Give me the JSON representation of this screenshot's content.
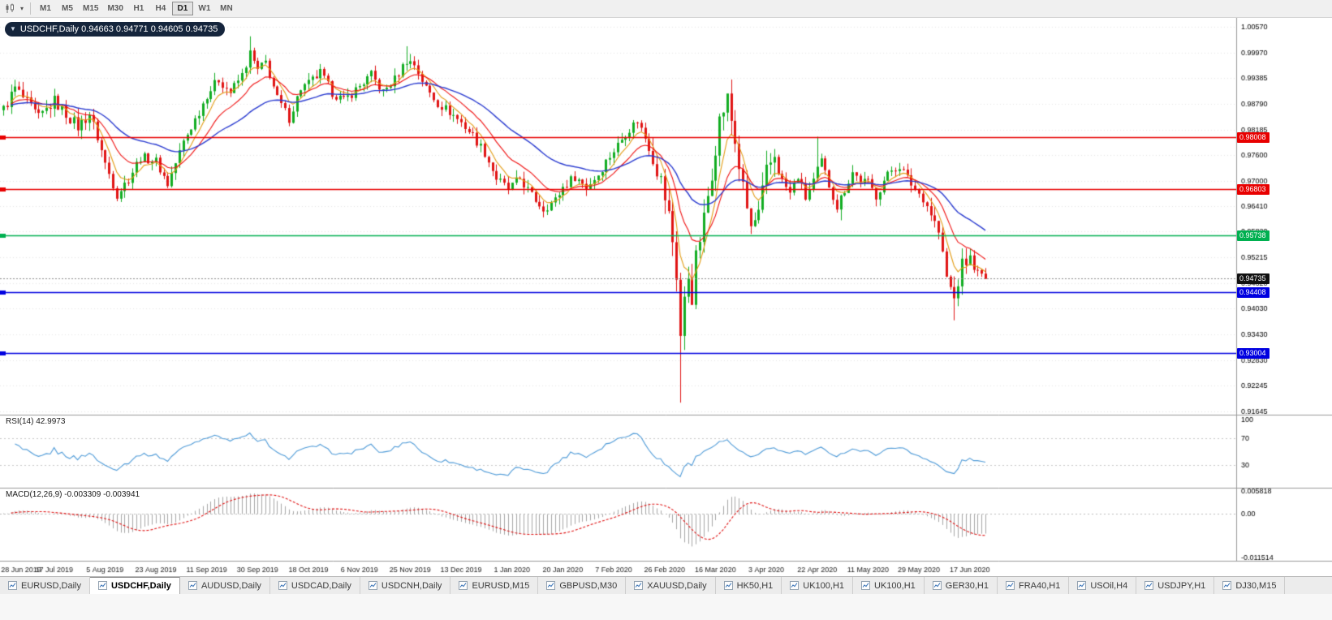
{
  "toolbar": {
    "timeframes": [
      "M1",
      "M5",
      "M15",
      "M30",
      "H1",
      "H4",
      "D1",
      "W1",
      "MN"
    ],
    "active_timeframe": "D1"
  },
  "chart": {
    "title": "USDCHF,Daily 0.94663 0.94771 0.94605 0.94735"
  },
  "tabs": [
    {
      "label": "EURUSD,Daily",
      "active": false
    },
    {
      "label": "USDCHF,Daily",
      "active": true
    },
    {
      "label": "AUDUSD,Daily",
      "active": false
    },
    {
      "label": "USDCAD,Daily",
      "active": false
    },
    {
      "label": "USDCNH,Daily",
      "active": false
    },
    {
      "label": "EURUSD,M15",
      "active": false
    },
    {
      "label": "GBPUSD,M30",
      "active": false
    },
    {
      "label": "XAUUSD,Daily",
      "active": false
    },
    {
      "label": "HK50,H1",
      "active": false
    },
    {
      "label": "UK100,H1",
      "active": false
    },
    {
      "label": "UK100,H1",
      "active": false
    },
    {
      "label": "GER30,H1",
      "active": false
    },
    {
      "label": "FRA40,H1",
      "active": false
    },
    {
      "label": "USOil,H4",
      "active": false
    },
    {
      "label": "USDJPY,H1",
      "active": false
    },
    {
      "label": "DJ30,M15",
      "active": false
    }
  ],
  "chart_data": {
    "type": "candlestick",
    "symbol": "USDCHF",
    "timeframe": "Daily",
    "ohlc_display": {
      "open": "0.94663",
      "high": "0.94771",
      "low": "0.94605",
      "close": "0.94735"
    },
    "bars": 252,
    "price_range": [
      0.9157,
      1.0076
    ],
    "up_color": "#12ad22",
    "down_color": "#e01414",
    "grid_color": "#e5e5e5",
    "y_ticks": [
      "1.00570",
      "0.99970",
      "0.99385",
      "0.98790",
      "0.98185",
      "0.97600",
      "0.97000",
      "0.96410",
      "0.95820",
      "0.95215",
      "0.94620",
      "0.94030",
      "0.93430",
      "0.92830",
      "0.92245",
      "0.91645"
    ],
    "x_tick_step": 13,
    "x_ticks": [
      "28 Jun 2019",
      "17 Jul 2019",
      "5 Aug 2019",
      "23 Aug 2019",
      "11 Sep 2019",
      "30 Sep 2019",
      "18 Oct 2019",
      "6 Nov 2019",
      "25 Nov 2019",
      "13 Dec 2019",
      "1 Jan 2020",
      "20 Jan 2020",
      "7 Feb 2020",
      "26 Feb 2020",
      "16 Mar 2020",
      "3 Apr 2020",
      "22 Apr 2020",
      "11 May 2020",
      "29 May 2020",
      "17 Jun 2020"
    ],
    "close_anchors": [
      [
        0,
        0.9865
      ],
      [
        3,
        0.9915
      ],
      [
        6,
        0.988
      ],
      [
        9,
        0.9845
      ],
      [
        13,
        0.9885
      ],
      [
        16,
        0.9855
      ],
      [
        19,
        0.9825
      ],
      [
        22,
        0.9855
      ],
      [
        24,
        0.98
      ],
      [
        26,
        0.974
      ],
      [
        29,
        0.9668
      ],
      [
        32,
        0.9705
      ],
      [
        35,
        0.9755
      ],
      [
        39,
        0.9745
      ],
      [
        42,
        0.9692
      ],
      [
        46,
        0.979
      ],
      [
        50,
        0.986
      ],
      [
        52,
        0.99
      ],
      [
        55,
        0.9935
      ],
      [
        58,
        0.9905
      ],
      [
        61,
        0.9945
      ],
      [
        63,
        0.9995
      ],
      [
        65,
        0.9955
      ],
      [
        67,
        0.9975
      ],
      [
        70,
        0.989
      ],
      [
        73,
        0.9845
      ],
      [
        76,
        0.9915
      ],
      [
        78,
        0.9925
      ],
      [
        81,
        0.995
      ],
      [
        84,
        0.9905
      ],
      [
        87,
        0.9885
      ],
      [
        91,
        0.992
      ],
      [
        94,
        0.9945
      ],
      [
        97,
        0.9905
      ],
      [
        100,
        0.9935
      ],
      [
        103,
        0.998
      ],
      [
        105,
        0.997
      ],
      [
        108,
        0.9915
      ],
      [
        111,
        0.988
      ],
      [
        114,
        0.986
      ],
      [
        117,
        0.9835
      ],
      [
        120,
        0.9805
      ],
      [
        123,
        0.9765
      ],
      [
        126,
        0.9705
      ],
      [
        129,
        0.968
      ],
      [
        132,
        0.9705
      ],
      [
        135,
        0.9665
      ],
      [
        138,
        0.9635
      ],
      [
        141,
        0.9655
      ],
      [
        143,
        0.9685
      ],
      [
        146,
        0.971
      ],
      [
        149,
        0.9685
      ],
      [
        152,
        0.9715
      ],
      [
        154,
        0.9745
      ],
      [
        156,
        0.977
      ],
      [
        159,
        0.981
      ],
      [
        162,
        0.984
      ],
      [
        164,
        0.98
      ],
      [
        166,
        0.9755
      ],
      [
        168,
        0.97
      ],
      [
        170,
        0.962
      ],
      [
        171,
        0.956
      ],
      [
        172,
        0.948
      ],
      [
        173,
        0.934
      ],
      [
        174,
        0.942
      ],
      [
        175,
        0.948
      ],
      [
        176,
        0.943
      ],
      [
        177,
        0.952
      ],
      [
        179,
        0.961
      ],
      [
        181,
        0.972
      ],
      [
        183,
        0.984
      ],
      [
        185,
        0.989
      ],
      [
        187,
        0.979
      ],
      [
        189,
        0.968
      ],
      [
        191,
        0.959
      ],
      [
        193,
        0.962
      ],
      [
        195,
        0.972
      ],
      [
        197,
        0.976
      ],
      [
        199,
        0.97
      ],
      [
        201,
        0.967
      ],
      [
        203,
        0.971
      ],
      [
        205,
        0.966
      ],
      [
        207,
        0.97
      ],
      [
        209,
        0.9745
      ],
      [
        211,
        0.969
      ],
      [
        213,
        0.964
      ],
      [
        215,
        0.968
      ],
      [
        217,
        0.972
      ],
      [
        219,
        0.97
      ],
      [
        221,
        0.9695
      ],
      [
        223,
        0.9665
      ],
      [
        225,
        0.97
      ],
      [
        227,
        0.9725
      ],
      [
        229,
        0.9735
      ],
      [
        231,
        0.9705
      ],
      [
        233,
        0.968
      ],
      [
        235,
        0.966
      ],
      [
        237,
        0.9625
      ],
      [
        239,
        0.958
      ],
      [
        241,
        0.9475
      ],
      [
        243,
        0.9425
      ],
      [
        245,
        0.9505
      ],
      [
        247,
        0.952
      ],
      [
        249,
        0.9485
      ],
      [
        251,
        0.9474
      ]
    ],
    "volatility_zones": [
      {
        "from": 0,
        "to": 23,
        "mult": 1.25
      },
      {
        "from": 166,
        "to": 198,
        "mult": 2.0
      },
      {
        "from": 237,
        "to": 246,
        "mult": 1.5
      }
    ],
    "wick_overrides": {
      "63": {
        "high": 1.0035
      },
      "103": {
        "high": 1.0012
      },
      "173": {
        "low": 0.9185
      },
      "185": {
        "high": 0.9901
      },
      "208": {
        "high": 0.9802
      },
      "214": {
        "low": 0.9608
      },
      "243": {
        "low": 0.9376
      }
    },
    "moving_averages": [
      {
        "period": 6,
        "color": "#e39c14"
      },
      {
        "period": 14,
        "color": "#f01010"
      },
      {
        "period": 36,
        "color": "#2a3bd0"
      }
    ],
    "levels": [
      {
        "value": 0.98008,
        "label": "0.98008",
        "color": "#e80000"
      },
      {
        "value": 0.96803,
        "label": "0.96803",
        "color": "#e80000"
      },
      {
        "value": 0.95738,
        "label": "0.95738",
        "color": "#00b050"
      },
      {
        "value": 0.94408,
        "label": "0.94408",
        "color": "#0000e0"
      },
      {
        "value": 0.93004,
        "label": "0.93004",
        "color": "#0000e0"
      }
    ],
    "current_price": {
      "value": 0.94735,
      "label": "0.94735",
      "color": "#111111"
    },
    "rsi": {
      "label": "RSI(14) 42.9973",
      "period": 14,
      "value": 42.9973,
      "levels": [
        70,
        30
      ],
      "axis": [
        "100",
        "70",
        "30"
      ],
      "color": "#4f9bd8"
    },
    "macd": {
      "label": "MACD(12,26,9) -0.003309 -0.003941",
      "fast": 12,
      "slow": 26,
      "signal": 9,
      "values": [
        -0.003309,
        -0.003941
      ],
      "scale_max": 0.005818,
      "scale_min": -0.011514,
      "axis": [
        "0.005818",
        "0.00",
        "-0.011514"
      ],
      "hist_color": "#a6a6a6",
      "signal_color": "#e01414"
    }
  }
}
